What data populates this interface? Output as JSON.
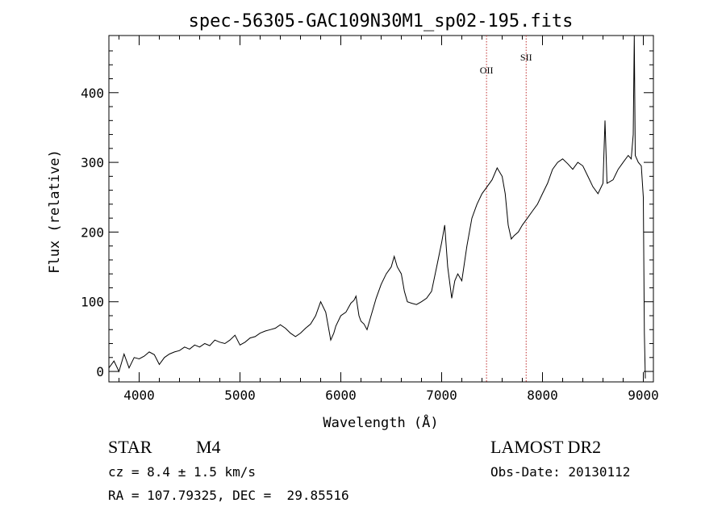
{
  "chart_data": {
    "type": "line",
    "title": "spec-56305-GAC109N30M1_sp02-195.fits",
    "xlabel": "Wavelength (Å)",
    "ylabel": "Flux (relative)",
    "xlim": [
      3700,
      9100
    ],
    "ylim": [
      -15,
      482
    ],
    "xticks": [
      4000,
      5000,
      6000,
      7000,
      8000,
      9000
    ],
    "yticks": [
      0,
      100,
      200,
      300,
      400
    ],
    "grid": false,
    "line_color": "#000000",
    "series": [
      {
        "points": [
          [
            3700,
            5
          ],
          [
            3750,
            15
          ],
          [
            3800,
            0
          ],
          [
            3850,
            25
          ],
          [
            3900,
            5
          ],
          [
            3950,
            20
          ],
          [
            4000,
            18
          ],
          [
            4050,
            22
          ],
          [
            4100,
            28
          ],
          [
            4150,
            24
          ],
          [
            4200,
            10
          ],
          [
            4250,
            20
          ],
          [
            4300,
            25
          ],
          [
            4350,
            28
          ],
          [
            4400,
            30
          ],
          [
            4450,
            35
          ],
          [
            4500,
            32
          ],
          [
            4550,
            38
          ],
          [
            4600,
            35
          ],
          [
            4650,
            40
          ],
          [
            4700,
            37
          ],
          [
            4750,
            45
          ],
          [
            4800,
            42
          ],
          [
            4850,
            40
          ],
          [
            4900,
            45
          ],
          [
            4950,
            52
          ],
          [
            5000,
            38
          ],
          [
            5050,
            42
          ],
          [
            5100,
            48
          ],
          [
            5150,
            50
          ],
          [
            5200,
            55
          ],
          [
            5250,
            58
          ],
          [
            5300,
            60
          ],
          [
            5350,
            62
          ],
          [
            5400,
            67
          ],
          [
            5450,
            62
          ],
          [
            5500,
            55
          ],
          [
            5550,
            50
          ],
          [
            5600,
            55
          ],
          [
            5650,
            62
          ],
          [
            5700,
            68
          ],
          [
            5750,
            80
          ],
          [
            5800,
            100
          ],
          [
            5850,
            85
          ],
          [
            5900,
            45
          ],
          [
            5930,
            55
          ],
          [
            5950,
            65
          ],
          [
            6000,
            80
          ],
          [
            6050,
            85
          ],
          [
            6100,
            98
          ],
          [
            6130,
            102
          ],
          [
            6150,
            108
          ],
          [
            6180,
            80
          ],
          [
            6200,
            72
          ],
          [
            6230,
            68
          ],
          [
            6260,
            60
          ],
          [
            6300,
            80
          ],
          [
            6350,
            105
          ],
          [
            6400,
            125
          ],
          [
            6450,
            140
          ],
          [
            6500,
            150
          ],
          [
            6530,
            165
          ],
          [
            6560,
            150
          ],
          [
            6600,
            140
          ],
          [
            6630,
            115
          ],
          [
            6660,
            100
          ],
          [
            6700,
            98
          ],
          [
            6750,
            96
          ],
          [
            6800,
            100
          ],
          [
            6850,
            105
          ],
          [
            6900,
            115
          ],
          [
            6950,
            150
          ],
          [
            7000,
            185
          ],
          [
            7030,
            210
          ],
          [
            7060,
            150
          ],
          [
            7100,
            105
          ],
          [
            7130,
            130
          ],
          [
            7160,
            140
          ],
          [
            7200,
            130
          ],
          [
            7250,
            180
          ],
          [
            7300,
            220
          ],
          [
            7350,
            240
          ],
          [
            7400,
            255
          ],
          [
            7450,
            265
          ],
          [
            7500,
            275
          ],
          [
            7550,
            292
          ],
          [
            7600,
            280
          ],
          [
            7630,
            255
          ],
          [
            7660,
            210
          ],
          [
            7690,
            190
          ],
          [
            7720,
            195
          ],
          [
            7760,
            200
          ],
          [
            7800,
            210
          ],
          [
            7850,
            220
          ],
          [
            7900,
            230
          ],
          [
            7950,
            240
          ],
          [
            8000,
            255
          ],
          [
            8050,
            270
          ],
          [
            8100,
            290
          ],
          [
            8150,
            300
          ],
          [
            8200,
            305
          ],
          [
            8250,
            298
          ],
          [
            8300,
            290
          ],
          [
            8350,
            300
          ],
          [
            8400,
            295
          ],
          [
            8450,
            280
          ],
          [
            8500,
            265
          ],
          [
            8550,
            255
          ],
          [
            8600,
            270
          ],
          [
            8620,
            360
          ],
          [
            8640,
            270
          ],
          [
            8700,
            275
          ],
          [
            8750,
            290
          ],
          [
            8800,
            300
          ],
          [
            8850,
            310
          ],
          [
            8880,
            305
          ],
          [
            8900,
            340
          ],
          [
            8910,
            482
          ],
          [
            8920,
            310
          ],
          [
            8950,
            300
          ],
          [
            8980,
            295
          ],
          [
            9000,
            250
          ],
          [
            9010,
            55
          ],
          [
            9020,
            -10
          ]
        ]
      }
    ],
    "vlines": [
      {
        "label": "OII",
        "x": 7445
      },
      {
        "label": "SII",
        "x": 7838
      }
    ]
  },
  "footer": {
    "object_type": "STAR",
    "subclass": "M4",
    "survey": "LAMOST DR2",
    "redshift": "cz = 8.4 ± 1.5 km/s",
    "obs_date": "Obs-Date: 20130112",
    "coords": "RA = 107.79325, DEC =  29.85516"
  }
}
